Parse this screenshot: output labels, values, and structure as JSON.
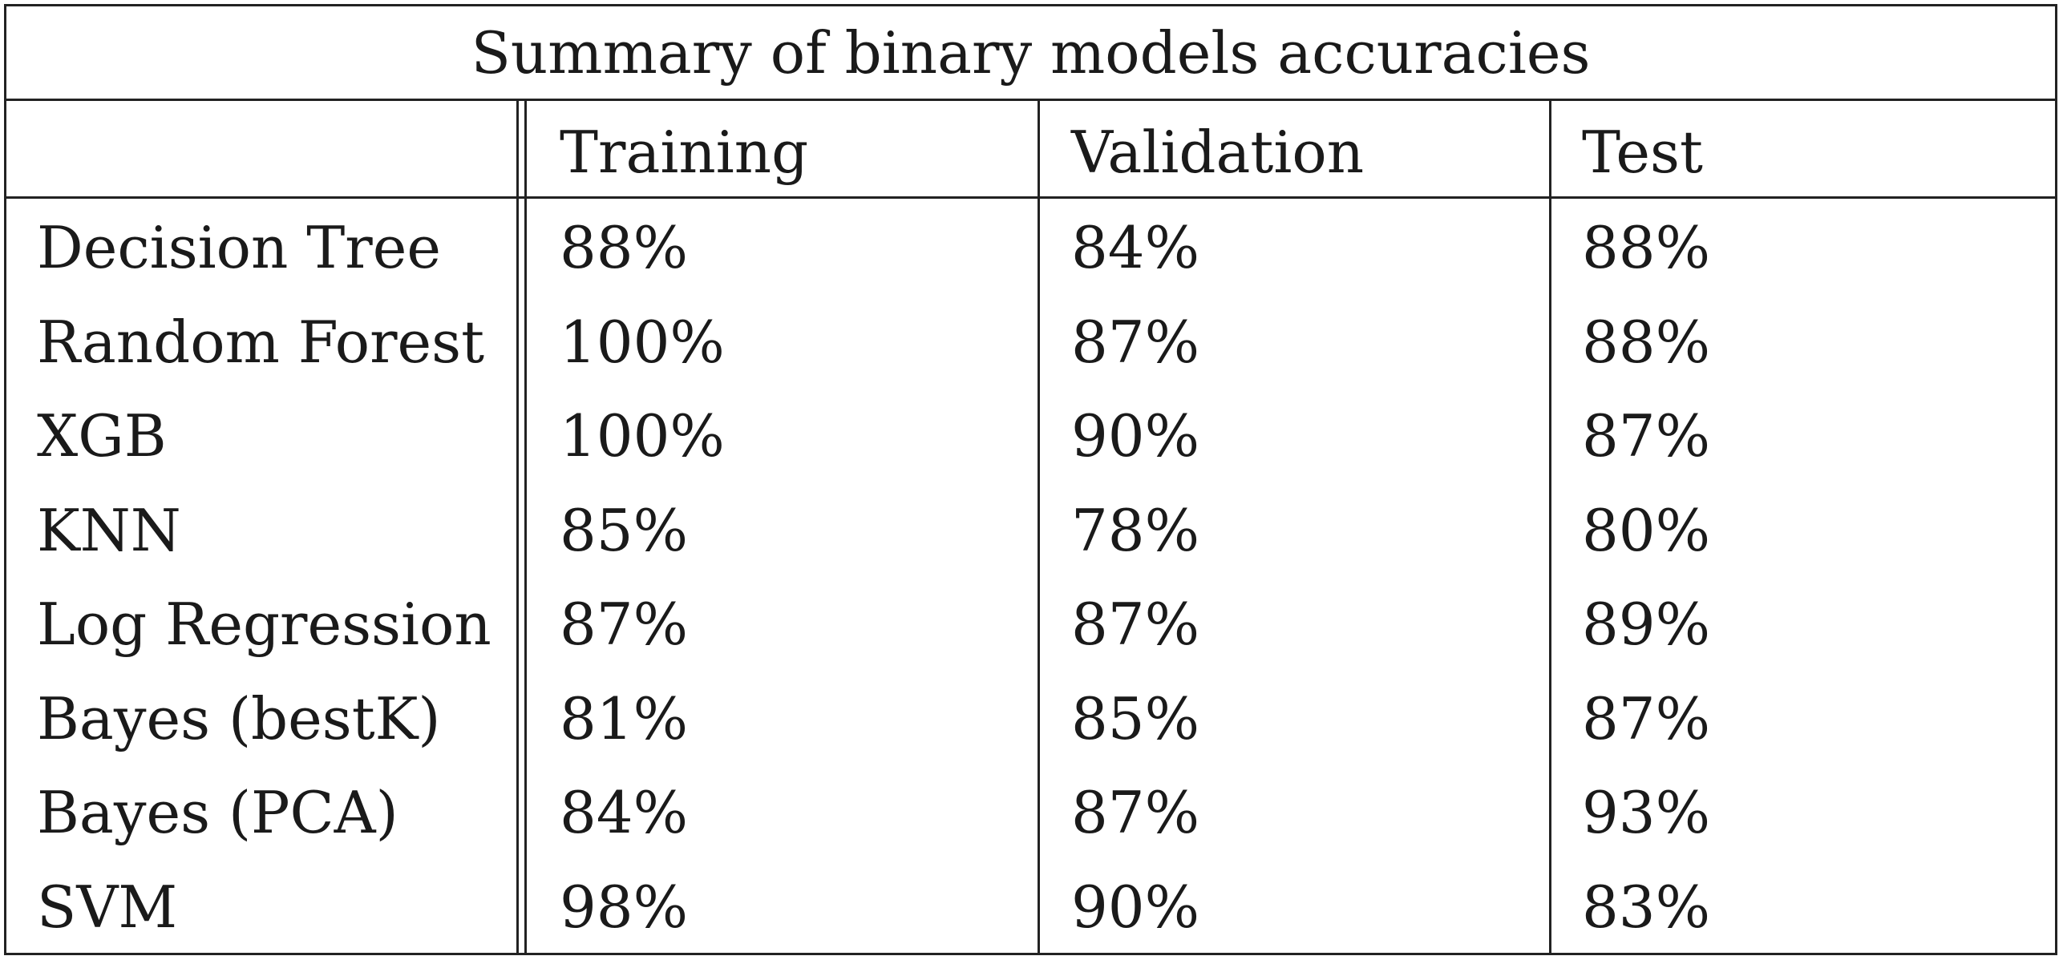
{
  "table": {
    "title": "Summary of binary models accuracies",
    "columns": [
      "",
      "Training",
      "Validation",
      "Test"
    ],
    "rows": [
      {
        "model": "Decision Tree",
        "training": "88%",
        "validation": "84%",
        "test": "88%"
      },
      {
        "model": "Random Forest",
        "training": "100%",
        "validation": "87%",
        "test": "88%"
      },
      {
        "model": "XGB",
        "training": "100%",
        "validation": "90%",
        "test": "87%"
      },
      {
        "model": "KNN",
        "training": "85%",
        "validation": "78%",
        "test": "80%"
      },
      {
        "model": "Log Regression",
        "training": "87%",
        "validation": "87%",
        "test": "89%"
      },
      {
        "model": "Bayes (bestK)",
        "training": "81%",
        "validation": "85%",
        "test": "87%"
      },
      {
        "model": "Bayes (PCA)",
        "training": "84%",
        "validation": "87%",
        "test": "93%"
      },
      {
        "model": "SVM",
        "training": "98%",
        "validation": "90%",
        "test": "83%"
      }
    ]
  }
}
